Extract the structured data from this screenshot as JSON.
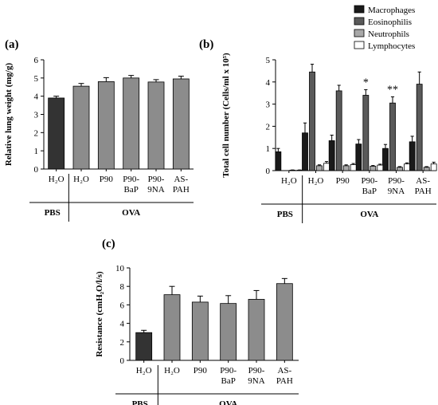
{
  "chart_data": [
    {
      "panel": "(a)",
      "type": "bar",
      "ylabel": "Relative lung weight (mg/g)",
      "ylim": [
        0,
        6
      ],
      "yticks": [
        "0",
        "1",
        "2",
        "3",
        "4",
        "5",
        "6"
      ],
      "categories": [
        "H₂O",
        "H₂O",
        "P90",
        "P90-BaP",
        "P90-9NA",
        "AS-PAH"
      ],
      "category_lines": [
        [
          "H₂O"
        ],
        [
          "H₂O"
        ],
        [
          "P90"
        ],
        [
          "P90-",
          "BaP"
        ],
        [
          "P90-",
          "9NA"
        ],
        [
          "AS-",
          "PAH"
        ]
      ],
      "values": [
        3.9,
        4.55,
        4.8,
        5.0,
        4.78,
        4.95
      ],
      "errors": [
        0.1,
        0.15,
        0.22,
        0.14,
        0.13,
        0.15
      ],
      "colors": [
        "#333333",
        "#8c8c8c",
        "#8c8c8c",
        "#8c8c8c",
        "#8c8c8c",
        "#8c8c8c"
      ],
      "groups": [
        {
          "label": "PBS",
          "span": [
            0,
            0
          ]
        },
        {
          "label": "OVA",
          "span": [
            1,
            5
          ]
        }
      ]
    },
    {
      "panel": "(b)",
      "type": "bar",
      "ylabel": "Total cell number (Cells/ml x 10⁵)",
      "ylim": [
        0,
        5
      ],
      "yticks": [
        "0",
        "1",
        "2",
        "3",
        "4",
        "5"
      ],
      "categories": [
        "H₂O",
        "H₂O",
        "P90",
        "P90-BaP",
        "P90-9NA",
        "AS-PAH"
      ],
      "category_lines": [
        [
          "H₂O"
        ],
        [
          "H₂O"
        ],
        [
          "P90"
        ],
        [
          "P90-",
          "BaP"
        ],
        [
          "P90-",
          "9NA"
        ],
        [
          "AS-",
          "PAH"
        ]
      ],
      "series": [
        {
          "name": "Macrophages",
          "color": "#1a1a1a",
          "values": [
            0.85,
            1.7,
            1.35,
            1.2,
            1.0,
            1.3
          ],
          "errors": [
            0.15,
            0.45,
            0.25,
            0.2,
            0.18,
            0.25
          ]
        },
        {
          "name": "Eosinophilis",
          "color": "#5a5a5a",
          "values": [
            0.0,
            4.45,
            3.6,
            3.4,
            3.05,
            3.9
          ],
          "errors": [
            0.0,
            0.35,
            0.25,
            0.25,
            0.28,
            0.55
          ]
        },
        {
          "name": "Neutrophils",
          "color": "#a8a8a8",
          "values": [
            0.02,
            0.22,
            0.22,
            0.2,
            0.15,
            0.15
          ],
          "errors": [
            0.01,
            0.04,
            0.04,
            0.03,
            0.03,
            0.03
          ]
        },
        {
          "name": "Lymphocytes",
          "color": "#ffffff",
          "values": [
            0.02,
            0.33,
            0.27,
            0.25,
            0.3,
            0.3
          ],
          "errors": [
            0.01,
            0.08,
            0.05,
            0.04,
            0.05,
            0.08
          ]
        }
      ],
      "annotations": [
        {
          "category": 3,
          "series": 1,
          "text": "*"
        },
        {
          "category": 4,
          "series": 1,
          "text": "**"
        }
      ],
      "legend_position": "top-right",
      "groups": [
        {
          "label": "PBS",
          "span": [
            0,
            0
          ]
        },
        {
          "label": "OVA",
          "span": [
            1,
            5
          ]
        }
      ]
    },
    {
      "panel": "(c)",
      "type": "bar",
      "ylabel": "Resistance (cmH₂O/l/s)",
      "ylim": [
        0,
        10
      ],
      "yticks": [
        "0",
        "2",
        "4",
        "6",
        "8",
        "10"
      ],
      "categories": [
        "H₂O",
        "H₂O",
        "P90",
        "P90-BaP",
        "P90-9NA",
        "AS-PAH"
      ],
      "category_lines": [
        [
          "H₂O"
        ],
        [
          "H₂O"
        ],
        [
          "P90"
        ],
        [
          "P90-",
          "BaP"
        ],
        [
          "P90-",
          "9NA"
        ],
        [
          "AS-",
          "PAH"
        ]
      ],
      "values": [
        3.0,
        7.1,
        6.3,
        6.15,
        6.6,
        8.3
      ],
      "errors": [
        0.25,
        0.9,
        0.65,
        0.85,
        0.95,
        0.55
      ],
      "colors": [
        "#333333",
        "#8c8c8c",
        "#8c8c8c",
        "#8c8c8c",
        "#8c8c8c",
        "#8c8c8c"
      ],
      "groups": [
        {
          "label": "PBS",
          "span": [
            0,
            0
          ]
        },
        {
          "label": "OVA",
          "span": [
            1,
            5
          ]
        }
      ]
    }
  ]
}
